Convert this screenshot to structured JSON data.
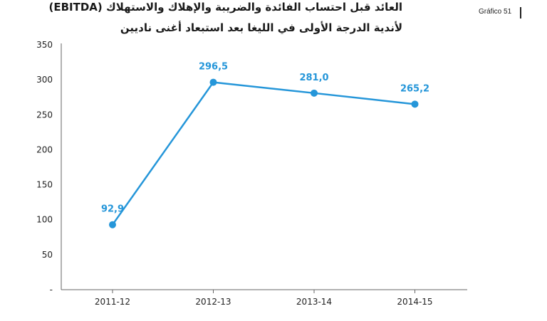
{
  "header": {
    "title_line1": "العائد قبل احتساب الفائدة والضريبة والإهلاك والاستهلاك (EBITDA)",
    "title_line2": "لأندية الدرجة الأولى في الليغا بعد استبعاد أغنى ناديين",
    "figure_label": "Gráfico 51"
  },
  "chart_data": {
    "type": "line",
    "categories": [
      "2011-12",
      "2012-13",
      "2013-14",
      "2014-15"
    ],
    "series": [
      {
        "values": [
          92.9,
          296.5,
          281.0,
          265.2
        ],
        "labels": [
          "92,9",
          "296,5",
          "281,0",
          "265,2"
        ]
      }
    ],
    "ylim": [
      0,
      350
    ],
    "yticks": [
      0,
      50,
      100,
      150,
      200,
      250,
      300,
      350
    ],
    "ytick_labels": [
      "-",
      "50",
      "100",
      "150",
      "200",
      "250",
      "300",
      "350"
    ],
    "grid": false,
    "color": "#2596d9"
  }
}
